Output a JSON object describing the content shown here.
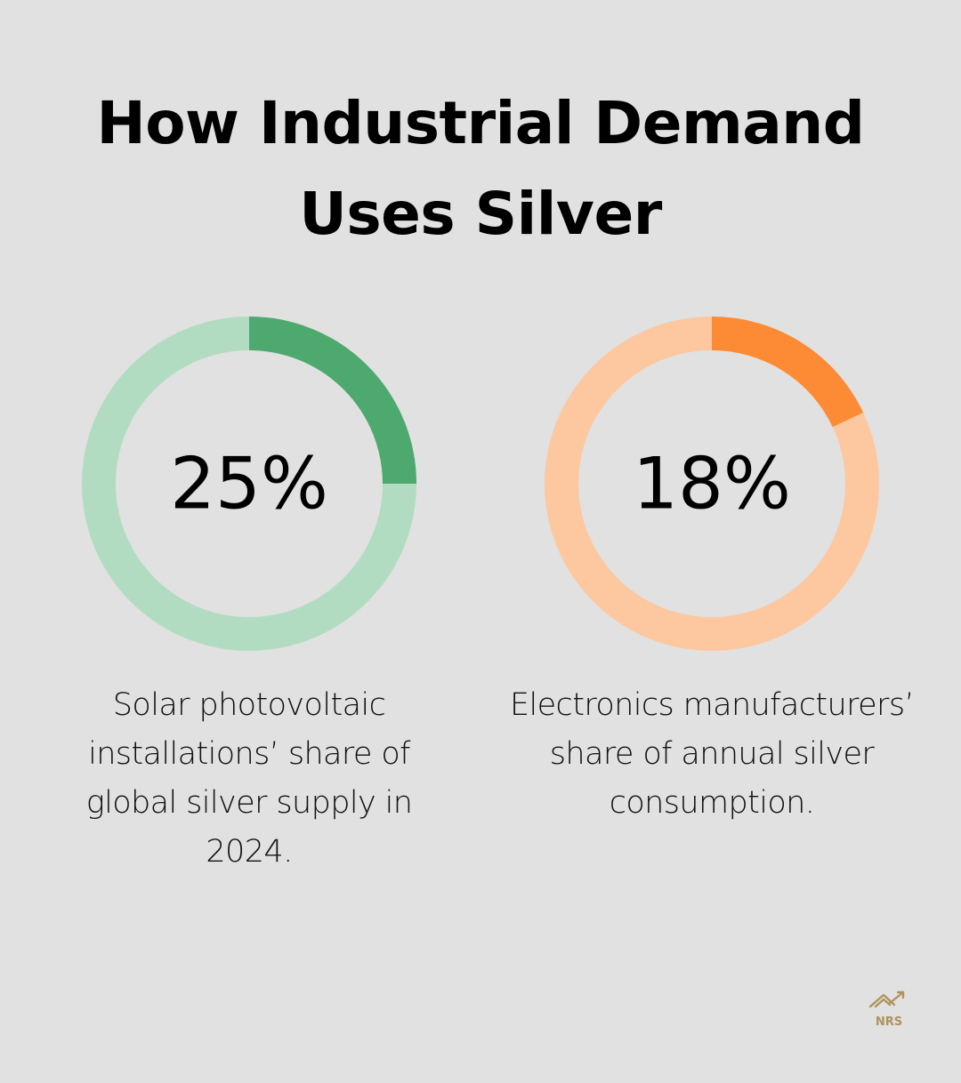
{
  "chart_data": [
    {
      "type": "pie",
      "value": 25,
      "max": 100,
      "label": "25%",
      "description": "Solar photovoltaic installations’ share of global silver supply in 2024.",
      "colors": {
        "filled": "#4ea96f",
        "track": "#b2dcc1"
      }
    },
    {
      "type": "pie",
      "value": 18,
      "max": 100,
      "label": "18%",
      "description": "Electronics manufacturers’ share of annual silver consumption.",
      "colors": {
        "filled": "#fd8b35",
        "track": "#fdc8a0"
      }
    }
  ],
  "title_lines": [
    "How Industrial Demand",
    "Uses Silver"
  ],
  "logo": {
    "text": "NRS",
    "icon": "house-with-rising-arrow",
    "color": "#b0935d"
  },
  "colors": {
    "background": "#e0e1e0"
  }
}
